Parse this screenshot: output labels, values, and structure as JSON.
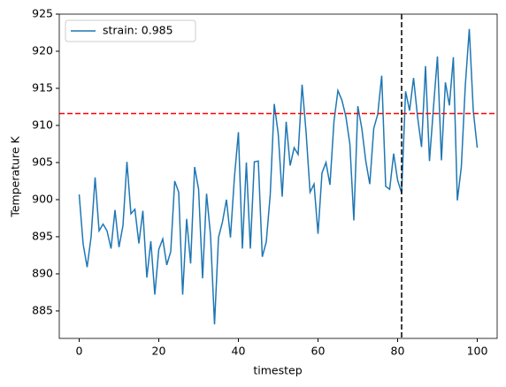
{
  "chart_data": {
    "type": "line",
    "xlabel": "timestep",
    "ylabel": "Temperature K",
    "x": [
      0,
      1,
      2,
      3,
      4,
      5,
      6,
      7,
      8,
      9,
      10,
      11,
      12,
      13,
      14,
      15,
      16,
      17,
      18,
      19,
      20,
      21,
      22,
      23,
      24,
      25,
      26,
      27,
      28,
      29,
      30,
      31,
      32,
      33,
      34,
      35,
      36,
      37,
      38,
      39,
      40,
      41,
      42,
      43,
      44,
      45,
      46,
      47,
      48,
      49,
      50,
      51,
      52,
      53,
      54,
      55,
      56,
      57,
      58,
      59,
      60,
      61,
      62,
      63,
      64,
      65,
      66,
      67,
      68,
      69,
      70,
      71,
      72,
      73,
      74,
      75,
      76,
      77,
      78,
      79,
      80,
      81,
      82,
      83,
      84,
      85,
      86,
      87,
      88,
      89,
      90,
      91,
      92,
      93,
      94,
      95,
      96,
      97,
      98,
      99,
      100
    ],
    "series": [
      {
        "name": "strain: 0.985",
        "color": "#1f77b4",
        "values": [
          900.7,
          894,
          890.9,
          895,
          903,
          895.8,
          896.7,
          895.8,
          893.4,
          898.6,
          893.6,
          896.5,
          905.1,
          898.1,
          898.7,
          894.1,
          898.5,
          889.5,
          894.4,
          887.2,
          893.3,
          894.7,
          891.2,
          893,
          902.5,
          901,
          887.2,
          897.4,
          891.4,
          904.4,
          901.4,
          889.4,
          900.8,
          895.2,
          883.2,
          894.9,
          897,
          900,
          894.9,
          903,
          909.1,
          893.4,
          905,
          893.4,
          905.1,
          905.2,
          892.3,
          894.3,
          900.7,
          912.9,
          908.9,
          900.4,
          910.5,
          904.6,
          907,
          906.1,
          915.5,
          909.1,
          901,
          902.1,
          895.4,
          903.6,
          905,
          902,
          910.5,
          914.7,
          913.4,
          911.2,
          907.5,
          897.2,
          912.6,
          909.6,
          905.2,
          902.1,
          909.6,
          911.5,
          916.7,
          901.8,
          901.4,
          906.2,
          902.6,
          900.9,
          914.6,
          912,
          916.4,
          911.2,
          907.1,
          918,
          905.2,
          912.4,
          919.3,
          905.3,
          915.8,
          912.7,
          919.2,
          899.9,
          904.4,
          915.4,
          923,
          912,
          907
        ]
      }
    ],
    "hline": {
      "value": 911.6,
      "color": "#ff0000"
    },
    "vline": {
      "value": 81,
      "color": "#000000"
    },
    "xlim": [
      -5,
      105
    ],
    "ylim": [
      881.3,
      925
    ],
    "xticks": [
      0,
      20,
      40,
      60,
      80,
      100
    ],
    "yticks": [
      885,
      890,
      895,
      900,
      905,
      910,
      915,
      920,
      925
    ],
    "legend": "upper left"
  }
}
